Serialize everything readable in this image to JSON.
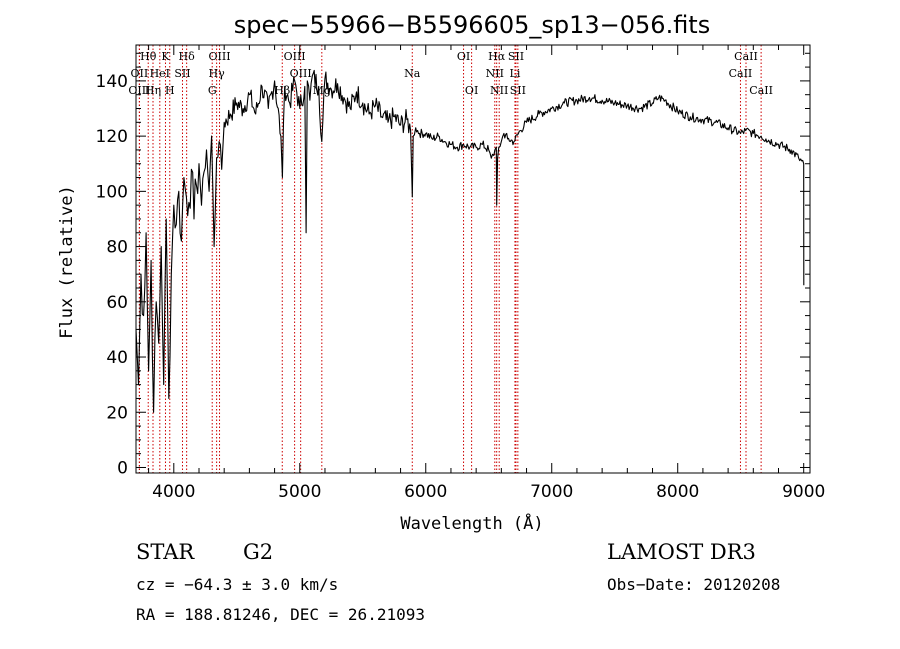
{
  "chart_data": {
    "type": "line",
    "title": "spec−55966−B5596605_sp13−056.fits",
    "xlabel": "Wavelength (Å)",
    "ylabel": "Flux (relative)",
    "xlim": [
      3700,
      9050
    ],
    "ylim": [
      -2,
      153
    ],
    "x_ticks": [
      4000,
      5000,
      6000,
      7000,
      8000,
      9000
    ],
    "y_ticks": [
      0,
      20,
      40,
      60,
      80,
      100,
      120,
      140
    ],
    "series": [
      {
        "name": "flux",
        "x": [
          3700,
          3720,
          3740,
          3760,
          3780,
          3800,
          3820,
          3840,
          3860,
          3880,
          3900,
          3920,
          3940,
          3960,
          3980,
          4000,
          4020,
          4040,
          4060,
          4080,
          4100,
          4120,
          4140,
          4160,
          4180,
          4200,
          4220,
          4240,
          4260,
          4280,
          4300,
          4320,
          4340,
          4360,
          4380,
          4400,
          4450,
          4500,
          4550,
          4600,
          4650,
          4700,
          4750,
          4800,
          4850,
          4862,
          4880,
          4920,
          4960,
          5000,
          5040,
          5050,
          5060,
          5080,
          5100,
          5150,
          5175,
          5200,
          5250,
          5300,
          5350,
          5400,
          5450,
          5500,
          5550,
          5600,
          5650,
          5700,
          5750,
          5800,
          5850,
          5880,
          5893,
          5900,
          5920,
          5950,
          6000,
          6050,
          6100,
          6150,
          6200,
          6250,
          6300,
          6350,
          6400,
          6450,
          6500,
          6520,
          6540,
          6560,
          6563,
          6570,
          6580,
          6600,
          6620,
          6650,
          6700,
          6750,
          6800,
          6900,
          7000,
          7100,
          7200,
          7300,
          7400,
          7500,
          7600,
          7700,
          7800,
          7850,
          7900,
          8000,
          8100,
          8200,
          8300,
          8400,
          8500,
          8540,
          8600,
          8662,
          8700,
          8800,
          8900,
          8960,
          9000,
          9001
        ],
        "y": [
          50,
          30,
          70,
          55,
          85,
          35,
          75,
          20,
          60,
          45,
          80,
          30,
          90,
          25,
          70,
          95,
          88,
          100,
          82,
          105,
          98,
          96,
          108,
          90,
          102,
          110,
          95,
          107,
          115,
          100,
          120,
          80,
          112,
          118,
          108,
          125,
          128,
          132,
          130,
          135,
          128,
          138,
          130,
          140,
          120,
          105,
          138,
          132,
          140,
          130,
          138,
          85,
          140,
          133,
          142,
          138,
          118,
          141,
          137,
          139,
          134,
          130,
          136,
          132,
          128,
          131,
          127,
          125,
          127,
          124,
          126,
          122,
          98,
          120,
          123,
          121,
          121,
          119,
          120,
          118,
          117,
          116,
          117,
          116,
          116,
          117,
          115,
          112,
          113,
          116,
          95,
          112,
          116,
          118,
          121,
          119,
          118,
          122,
          125,
          128,
          130,
          132,
          133,
          134,
          133,
          132,
          131,
          130,
          132,
          134,
          133,
          129,
          127,
          126,
          125,
          123,
          121,
          122,
          121,
          120,
          119,
          117,
          115,
          112,
          110,
          66
        ]
      }
    ],
    "spectral_lines": [
      {
        "label": "Hθ",
        "wavelength": 3797,
        "row": 1
      },
      {
        "label": "OII",
        "wavelength": 3727,
        "row": 2
      },
      {
        "label": "OIII",
        "wavelength": 3727,
        "row": 3
      },
      {
        "label": "K",
        "wavelength": 3934,
        "row": 1
      },
      {
        "label": "HeI",
        "wavelength": 3889,
        "row": 2
      },
      {
        "label": "Hη",
        "wavelength": 3835,
        "row": 3
      },
      {
        "label": "H",
        "wavelength": 3968,
        "row": 3
      },
      {
        "label": "Hδ",
        "wavelength": 4102,
        "row": 1
      },
      {
        "label": "SII",
        "wavelength": 4069,
        "row": 2
      },
      {
        "label": "OIII",
        "wavelength": 4363,
        "row": 1
      },
      {
        "label": "Hγ",
        "wavelength": 4340,
        "row": 2
      },
      {
        "label": "G",
        "wavelength": 4305,
        "row": 3
      },
      {
        "label": "OIII",
        "wavelength": 4959,
        "row": 1
      },
      {
        "label": "OIII",
        "wavelength": 5007,
        "row": 2
      },
      {
        "label": "Hβ",
        "wavelength": 4861,
        "row": 3
      },
      {
        "label": "Mg",
        "wavelength": 5175,
        "row": 3
      },
      {
        "label": "Na",
        "wavelength": 5893,
        "row": 2
      },
      {
        "label": "OI",
        "wavelength": 6300,
        "row": 1
      },
      {
        "label": "OI",
        "wavelength": 6364,
        "row": 3
      },
      {
        "label": "Hα",
        "wavelength": 6563,
        "row": 1
      },
      {
        "label": "SII",
        "wavelength": 6716,
        "row": 1
      },
      {
        "label": "NII",
        "wavelength": 6548,
        "row": 2
      },
      {
        "label": "Li",
        "wavelength": 6708,
        "row": 2
      },
      {
        "label": "NII",
        "wavelength": 6583,
        "row": 3
      },
      {
        "label": "SII",
        "wavelength": 6731,
        "row": 3
      },
      {
        "label": "CaII",
        "wavelength": 8542,
        "row": 1
      },
      {
        "label": "CaII",
        "wavelength": 8498,
        "row": 2
      },
      {
        "label": "CaII",
        "wavelength": 8662,
        "row": 3
      }
    ]
  },
  "info": {
    "object_class": "STAR",
    "subclass": "G2",
    "survey": "LAMOST DR3",
    "redshift_line": "cz = −64.3 ± 3.0 km/s",
    "obs_date_line": "Obs−Date: 20120208",
    "coords_line": "RA = 188.81246, DEC =  26.21093"
  },
  "colors": {
    "axis": "#000000",
    "spectrum": "#000000",
    "line_marker": "#cc0000",
    "background": "#ffffff"
  }
}
